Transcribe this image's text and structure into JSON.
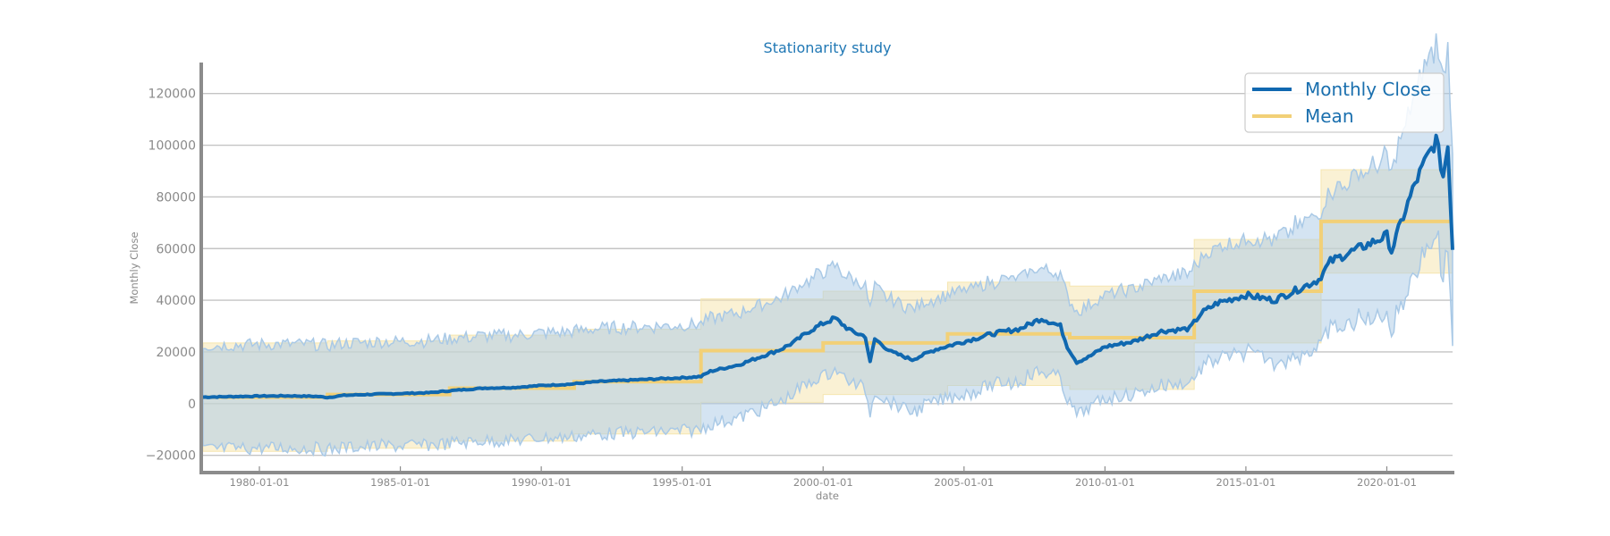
{
  "chart_data": {
    "type": "line",
    "title": "Stationarity study",
    "xlabel": "date",
    "ylabel": "Monthly Close",
    "xlim": [
      "1978-01-01",
      "2022-05-01"
    ],
    "ylim": [
      -26000,
      132000
    ],
    "yticks": [
      -20000,
      0,
      20000,
      40000,
      60000,
      80000,
      100000,
      120000
    ],
    "ytick_labels": [
      "−20000",
      "0",
      "20000",
      "40000",
      "60000",
      "80000",
      "100000",
      "120000"
    ],
    "xticks": [
      "1980-01-01",
      "1985-01-01",
      "1990-01-01",
      "1995-01-01",
      "2000-01-01",
      "2005-01-01",
      "2010-01-01",
      "2015-01-01",
      "2020-01-01"
    ],
    "grid": "horizontal",
    "legend_position": "top-right",
    "colors": {
      "close": "#1068b0",
      "mean": "#f2d077",
      "close_band": "#a9c9e6",
      "mean_band": "#f5e6b0",
      "axis": "#8c8c8c",
      "grid": "#c4c4c4"
    },
    "series": [
      {
        "name": "Monthly Close",
        "style": "line",
        "points": [
          [
            "1978-01-01",
            2500
          ],
          [
            "1979-01-01",
            2700
          ],
          [
            "1980-01-01",
            2900
          ],
          [
            "1981-01-01",
            3000
          ],
          [
            "1982-01-01",
            2800
          ],
          [
            "1982-06-01",
            2400
          ],
          [
            "1983-01-01",
            3200
          ],
          [
            "1984-01-01",
            3600
          ],
          [
            "1985-01-01",
            3900
          ],
          [
            "1986-01-01",
            4200
          ],
          [
            "1987-01-01",
            5200
          ],
          [
            "1988-01-01",
            6000
          ],
          [
            "1989-01-01",
            6200
          ],
          [
            "1990-01-01",
            7000
          ],
          [
            "1991-01-01",
            7500
          ],
          [
            "1992-01-01",
            8500
          ],
          [
            "1993-01-01",
            9000
          ],
          [
            "1994-01-01",
            9500
          ],
          [
            "1995-01-01",
            10000
          ],
          [
            "1995-09-01",
            10500
          ],
          [
            "1996-01-01",
            12500
          ],
          [
            "1997-01-01",
            15000
          ],
          [
            "1998-01-01",
            19000
          ],
          [
            "1998-07-01",
            21000
          ],
          [
            "1999-01-01",
            24000
          ],
          [
            "1999-07-01",
            28000
          ],
          [
            "2000-01-01",
            31000
          ],
          [
            "2000-06-01",
            33000
          ],
          [
            "2001-01-01",
            28000
          ],
          [
            "2001-07-01",
            26000
          ],
          [
            "2001-09-01",
            16000
          ],
          [
            "2001-11-01",
            25000
          ],
          [
            "2002-06-01",
            20000
          ],
          [
            "2003-03-01",
            17000
          ],
          [
            "2004-01-01",
            21000
          ],
          [
            "2005-01-01",
            24000
          ],
          [
            "2006-01-01",
            27000
          ],
          [
            "2007-01-01",
            29000
          ],
          [
            "2007-10-01",
            33000
          ],
          [
            "2008-06-01",
            30000
          ],
          [
            "2008-09-01",
            22000
          ],
          [
            "2009-01-01",
            16000
          ],
          [
            "2009-06-01",
            18000
          ],
          [
            "2010-01-01",
            22000
          ],
          [
            "2011-01-01",
            24000
          ],
          [
            "2012-01-01",
            28000
          ],
          [
            "2013-01-01",
            29000
          ],
          [
            "2013-06-01",
            35000
          ],
          [
            "2014-01-01",
            39000
          ],
          [
            "2015-01-01",
            42000
          ],
          [
            "2016-01-01",
            40000
          ],
          [
            "2017-01-01",
            45000
          ],
          [
            "2017-08-01",
            48000
          ],
          [
            "2018-01-01",
            55000
          ],
          [
            "2018-08-01",
            58000
          ],
          [
            "2019-01-01",
            60000
          ],
          [
            "2019-06-01",
            62000
          ],
          [
            "2020-01-01",
            65000
          ],
          [
            "2020-03-01",
            59000
          ],
          [
            "2020-07-01",
            70000
          ],
          [
            "2021-01-01",
            85000
          ],
          [
            "2021-06-01",
            95000
          ],
          [
            "2021-10-01",
            102000
          ],
          [
            "2022-01-01",
            88000
          ],
          [
            "2022-03-01",
            100000
          ],
          [
            "2022-05-01",
            60000
          ]
        ]
      },
      {
        "name": "Mean",
        "style": "step",
        "steps": [
          [
            "1978-01-01",
            2500
          ],
          [
            "1982-06-01",
            3500
          ],
          [
            "1986-10-01",
            6000
          ],
          [
            "1991-03-01",
            8500
          ],
          [
            "1995-09-01",
            20500
          ],
          [
            "2000-01-01",
            23500
          ],
          [
            "2004-06-01",
            27000
          ],
          [
            "2008-10-01",
            25500
          ],
          [
            "2013-03-01",
            43500
          ],
          [
            "2017-09-01",
            70500
          ],
          [
            "2022-05-01",
            70500
          ]
        ]
      }
    ],
    "band_width": {
      "close": [
        [
          "1978-01-01",
          20000
        ],
        [
          "1995-01-01",
          20500
        ],
        [
          "2000-01-01",
          20000
        ],
        [
          "2010-01-01",
          20000
        ],
        [
          "2015-01-01",
          22000
        ],
        [
          "2020-01-01",
          30000
        ],
        [
          "2022-05-01",
          40000
        ]
      ],
      "mean": [
        [
          "1978-01-01",
          21000
        ],
        [
          "1995-09-01",
          20000
        ],
        [
          "2004-06-01",
          20000
        ],
        [
          "2013-03-01",
          20000
        ],
        [
          "2017-09-01",
          20000
        ],
        [
          "2022-05-01",
          20000
        ]
      ]
    }
  }
}
